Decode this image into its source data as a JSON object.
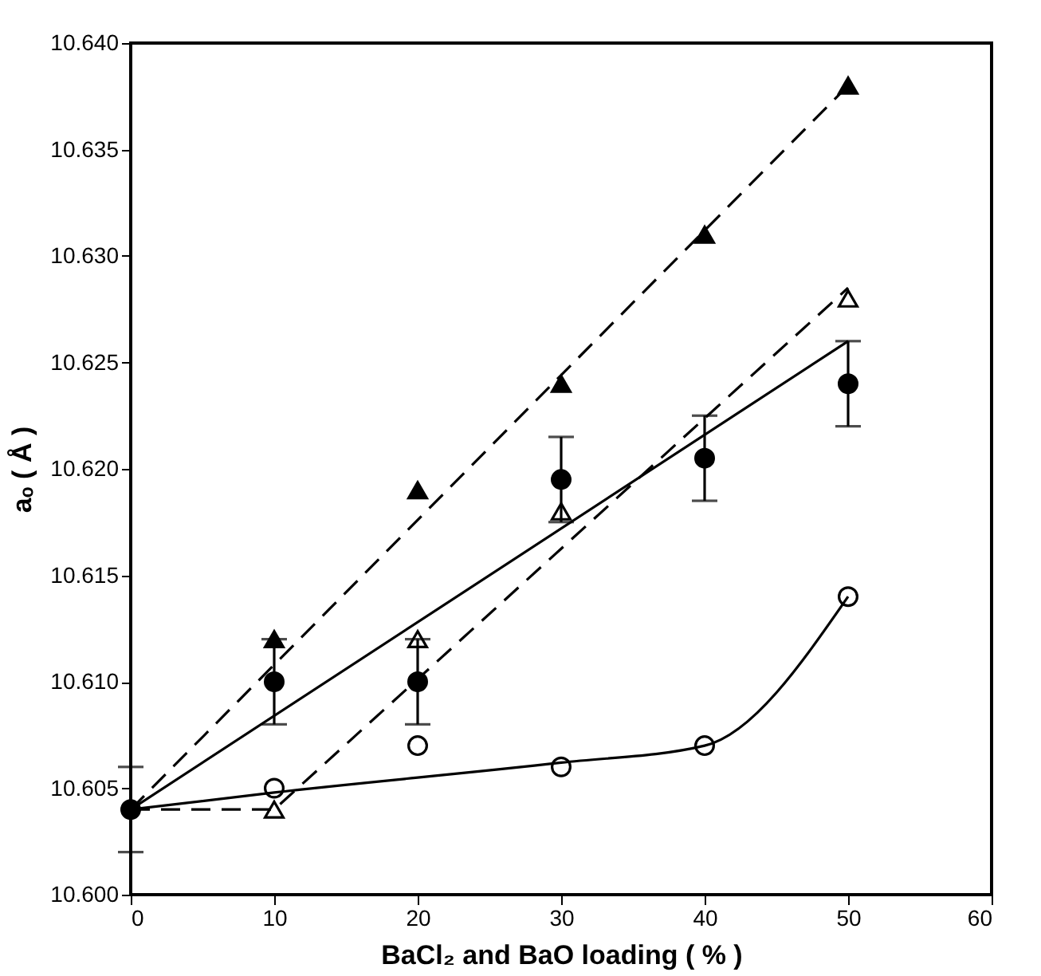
{
  "chart_data": {
    "type": "scatter",
    "xlabel": "BaCl₂ and BaO loading ( % )",
    "ylabel": "aₒ ( Å )",
    "xlim": [
      0,
      60
    ],
    "xticks": [
      0,
      10,
      20,
      30,
      40,
      50,
      60
    ],
    "ylim": [
      10.6,
      10.64
    ],
    "yticks": [
      {
        "value": 10.6,
        "label": "10.600"
      },
      {
        "value": 10.605,
        "label": "10.605"
      },
      {
        "value": 10.61,
        "label": "10.610"
      },
      {
        "value": 10.615,
        "label": "10.615"
      },
      {
        "value": 10.62,
        "label": "10.620"
      },
      {
        "value": 10.625,
        "label": "10.625"
      },
      {
        "value": 10.63,
        "label": "10.630"
      },
      {
        "value": 10.635,
        "label": "10.635"
      },
      {
        "value": 10.64,
        "label": "10.640"
      }
    ],
    "grid": false,
    "series": [
      {
        "type": "line",
        "color": "#000000",
        "line_style": "dashed",
        "marker": "none",
        "x": [
          0,
          50
        ],
        "values": [
          10.604,
          10.638
        ]
      },
      {
        "type": "line",
        "color": "#000000",
        "line_style": "dashed",
        "marker": "none",
        "x": [
          0,
          10,
          50
        ],
        "values": [
          10.604,
          10.604,
          10.6285
        ]
      },
      {
        "type": "line",
        "color": "#000000",
        "line_style": "solid",
        "marker": "none",
        "x": [
          0,
          50
        ],
        "values": [
          10.604,
          10.626
        ]
      },
      {
        "type": "line",
        "color": "#000000",
        "line_style": "solid",
        "marker": "none",
        "x": [
          0,
          10,
          30,
          40,
          50
        ],
        "values": [
          10.604,
          10.6048,
          10.6062,
          10.607,
          10.614
        ]
      },
      {
        "type": "scatter",
        "color": "#000000",
        "marker": "triangle",
        "x": [
          10,
          20,
          30,
          40,
          50
        ],
        "values": [
          10.612,
          10.619,
          10.624,
          10.631,
          10.638
        ]
      },
      {
        "type": "scatter",
        "color": "#ffffff",
        "marker": "triangle",
        "x": [
          10,
          20,
          30,
          40,
          50
        ],
        "values": [
          10.604,
          10.612,
          10.618,
          null,
          10.628
        ]
      },
      {
        "type": "scatter",
        "color": "#000000",
        "marker": "circle",
        "x": [
          0,
          10,
          20,
          30,
          40,
          50
        ],
        "values": [
          10.604,
          10.61,
          10.61,
          10.6195,
          10.6205,
          10.624
        ],
        "errors": [
          0.002,
          0.002,
          0.002,
          0.002,
          0.002,
          0.002
        ]
      },
      {
        "type": "scatter",
        "color": "#ffffff",
        "marker": "circle",
        "x": [
          10,
          20,
          30,
          40,
          50
        ],
        "values": [
          10.605,
          10.607,
          10.606,
          10.607,
          10.614
        ]
      }
    ]
  }
}
